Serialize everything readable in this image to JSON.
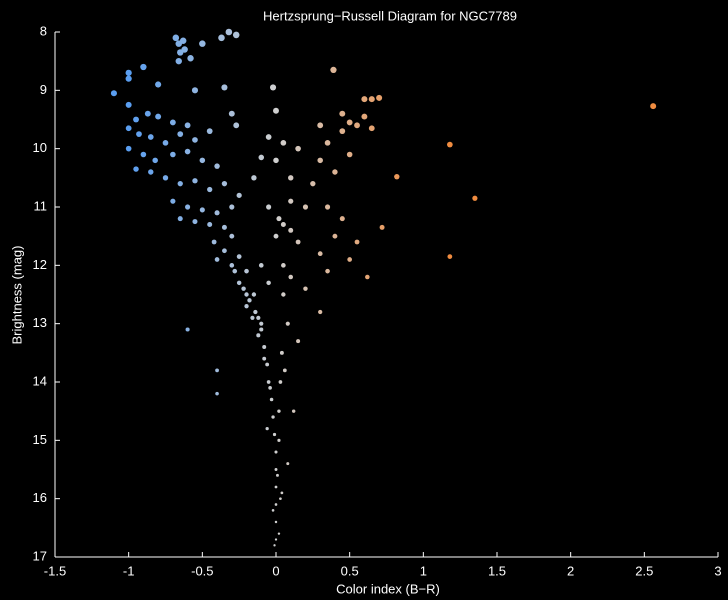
{
  "chart_data": {
    "type": "scatter",
    "title": "Hertzsprung−Russell Diagram for NGC7789",
    "xlabel": "Color index (B−R)",
    "ylabel": "Brightness (mag)",
    "xlim": [
      -1.5,
      3
    ],
    "xticks": [
      -1.5,
      -1,
      -0.5,
      0,
      0.5,
      1,
      1.5,
      2,
      2.5,
      3
    ],
    "ylim": [
      8,
      17
    ],
    "yticks": [
      8,
      9,
      10,
      11,
      12,
      13,
      14,
      15,
      16,
      17
    ],
    "y_inverted": true,
    "colormap": [
      "#5a9ef0",
      "#cfcfcf",
      "#f08c40"
    ],
    "x": [
      -0.68,
      -0.66,
      -0.63,
      -0.65,
      -0.62,
      -0.66,
      -0.58,
      -0.5,
      -0.37,
      -0.32,
      -0.27,
      -1.0,
      -1.0,
      -0.9,
      -1.1,
      -0.8,
      -0.55,
      -0.35,
      -0.02,
      0.39,
      0.6,
      0.65,
      0.7,
      2.56,
      1.18,
      1.35,
      1.18,
      0.82,
      0.72,
      0.62,
      -1.0,
      -0.95,
      -0.87,
      -0.8,
      -0.7,
      -0.6,
      -1.0,
      -0.93,
      -0.85,
      -0.75,
      -0.65,
      -0.55,
      -0.45,
      -0.3,
      -0.27,
      -1.0,
      -0.9,
      -0.82,
      -0.7,
      -0.6,
      -0.5,
      -0.4,
      -0.95,
      -0.85,
      -0.75,
      -0.65,
      -0.55,
      -0.45,
      -0.35,
      -0.7,
      -0.6,
      -0.5,
      -0.4,
      -0.3,
      -0.25,
      -0.65,
      -0.55,
      -0.45,
      -0.35,
      -0.3,
      -0.42,
      -0.35,
      -0.25,
      -0.4,
      -0.3,
      -0.2,
      -0.25,
      -0.15,
      -0.2,
      -0.12,
      -0.1,
      -0.08,
      -0.06,
      -0.05,
      -0.03,
      -0.02,
      -0.01,
      0,
      0,
      0,
      0,
      0,
      0,
      -0.6,
      -0.4,
      -0.4,
      0.05,
      0.0,
      0.05,
      0.1,
      0.02,
      0.15,
      0.1,
      0.05,
      0.08,
      0.04,
      0.03,
      0.02,
      0.02,
      -0.1,
      -0.05,
      0.2,
      0.3,
      0.15,
      0.2,
      0.25,
      0.1,
      0.0,
      -0.1,
      0.15,
      0.3,
      0.35,
      0.45,
      0.3,
      0.5,
      0.55,
      0.65,
      0.45,
      0.6,
      0.5,
      0.4,
      0.35,
      0.45,
      0.55,
      0.5,
      0.35,
      0.4,
      -0.05,
      0.0,
      0.05,
      -0.15,
      0.1,
      -0.05,
      0.3,
      -0.28,
      -0.22,
      -0.18,
      -0.14,
      -0.1,
      -0.16,
      -0.2,
      -0.12,
      -0.08,
      -0.04,
      0.06,
      0.12,
      0.08,
      0.04,
      -0.02,
      0.02,
      -0.06,
      0.01,
      0.03,
      -0.01
    ],
    "y": [
      8.1,
      8.2,
      8.15,
      8.35,
      8.3,
      8.5,
      8.45,
      8.2,
      8.1,
      8.0,
      8.05,
      8.7,
      8.8,
      8.6,
      9.05,
      8.9,
      9.0,
      8.95,
      8.95,
      8.65,
      9.15,
      9.15,
      9.13,
      9.27,
      9.93,
      10.85,
      11.85,
      10.48,
      11.35,
      12.2,
      9.25,
      9.5,
      9.4,
      9.45,
      9.55,
      9.6,
      9.65,
      9.75,
      9.8,
      9.9,
      9.75,
      9.85,
      9.7,
      9.4,
      9.6,
      10.0,
      10.1,
      10.2,
      10.1,
      10.05,
      10.2,
      10.3,
      10.35,
      10.4,
      10.5,
      10.6,
      10.55,
      10.7,
      10.6,
      10.9,
      11.0,
      11.05,
      11.1,
      11.0,
      10.8,
      11.2,
      11.25,
      11.3,
      11.35,
      11.5,
      11.6,
      11.75,
      11.85,
      11.9,
      12.0,
      12.1,
      12.3,
      12.5,
      12.7,
      12.9,
      13.1,
      13.4,
      13.7,
      14.0,
      14.3,
      14.6,
      14.9,
      15.2,
      15.5,
      15.8,
      16.1,
      16.4,
      16.7,
      13.1,
      13.8,
      14.2,
      12.0,
      11.5,
      11.3,
      11.4,
      11.2,
      11.6,
      12.2,
      12.5,
      13.0,
      13.5,
      14.0,
      14.5,
      15.0,
      12.0,
      12.3,
      12.4,
      12.8,
      13.3,
      11.0,
      10.6,
      10.5,
      10.2,
      10.15,
      10.0,
      10.2,
      9.9,
      9.7,
      9.6,
      9.55,
      9.6,
      9.65,
      9.4,
      9.45,
      10.1,
      10.4,
      11.0,
      11.2,
      11.6,
      11.9,
      12.1,
      11.5,
      9.8,
      9.35,
      9.9,
      10.5,
      10.9,
      11.0,
      11.8,
      12.1,
      12.4,
      12.6,
      12.8,
      13.0,
      12.9,
      12.5,
      13.2,
      13.6,
      14.1,
      13.8,
      14.5,
      15.4,
      15.9,
      16.2,
      16.6,
      14.8,
      15.6,
      16.0,
      16.8
    ]
  }
}
